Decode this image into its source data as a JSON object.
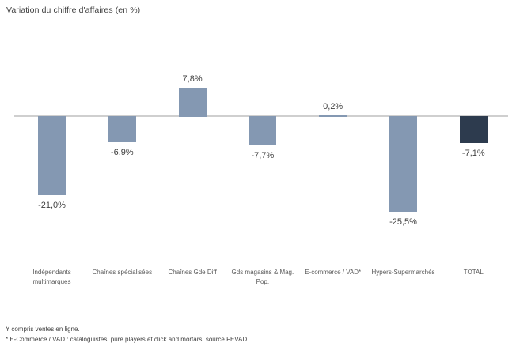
{
  "title": "Variation du chiffre d'affaires (en %)",
  "footnotes": [
    "Y compris ventes en ligne.",
    "* E-Commerce / VAD : cataloguistes, pure players et click and mortars, source FEVAD."
  ],
  "colors": {
    "bar": "#8498b2",
    "total_bar": "#2d3b4e",
    "axis_line": "#cfcfcf",
    "value_label": "#404040",
    "category_label": "#595959"
  },
  "chart_data": {
    "type": "bar",
    "title": "Variation du chiffre d'affaires (en %)",
    "categories": [
      "Indépendants multimarques",
      "Chaînes spécialisées",
      "Chaînes Gde Diff",
      "Gds magasins & Mag. Pop.",
      "E-commerce / VAD*",
      "Hypers-Supermarchés",
      "TOTAL"
    ],
    "values": [
      -21.0,
      -6.9,
      7.8,
      -7.7,
      0.2,
      -25.5,
      -7.1
    ],
    "value_labels": [
      "-21,0%",
      "-6,9%",
      "7,8%",
      "-7,7%",
      "0,2%",
      "-25,5%",
      "-7,1%"
    ],
    "highlight_index": 6,
    "xlabel": "",
    "ylabel": "",
    "ylim": [
      -30,
      12
    ],
    "grid": false,
    "legend": false,
    "baseline": 0
  }
}
